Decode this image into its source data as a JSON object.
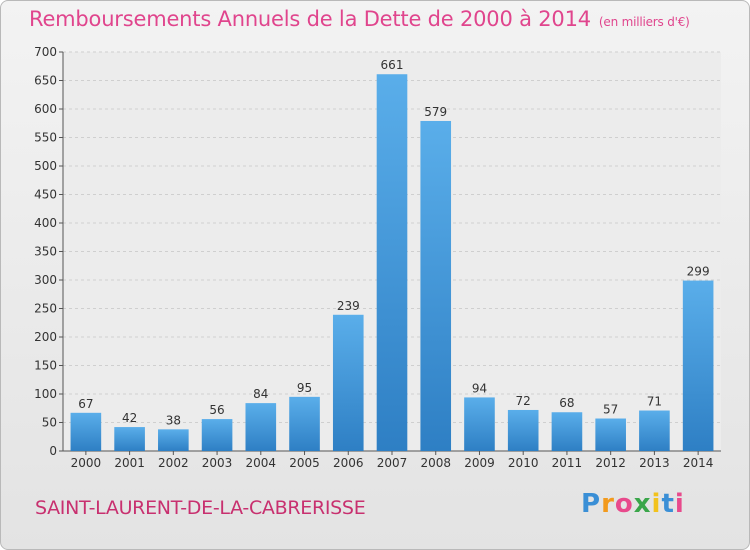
{
  "chart_data": {
    "type": "bar",
    "title": "Remboursements Annuels de la Dette de 2000 à 2014",
    "subtitle": "(en milliers d'€)",
    "categories": [
      "2000",
      "2001",
      "2002",
      "2003",
      "2004",
      "2005",
      "2006",
      "2007",
      "2008",
      "2009",
      "2010",
      "2011",
      "2012",
      "2013",
      "2014"
    ],
    "values": [
      67,
      42,
      38,
      56,
      84,
      95,
      239,
      661,
      579,
      94,
      72,
      68,
      57,
      71,
      299
    ],
    "ylim": [
      0,
      700
    ],
    "yticks": [
      0,
      50,
      100,
      150,
      200,
      250,
      300,
      350,
      400,
      450,
      500,
      550,
      600,
      650,
      700
    ],
    "grid": true,
    "bar_color": "#3a8fd6"
  },
  "footer": {
    "commune": "SAINT-LAURENT-DE-LA-CABRERISSE",
    "logo": [
      "P",
      "r",
      "o",
      "x",
      "i",
      "t",
      "i"
    ]
  }
}
